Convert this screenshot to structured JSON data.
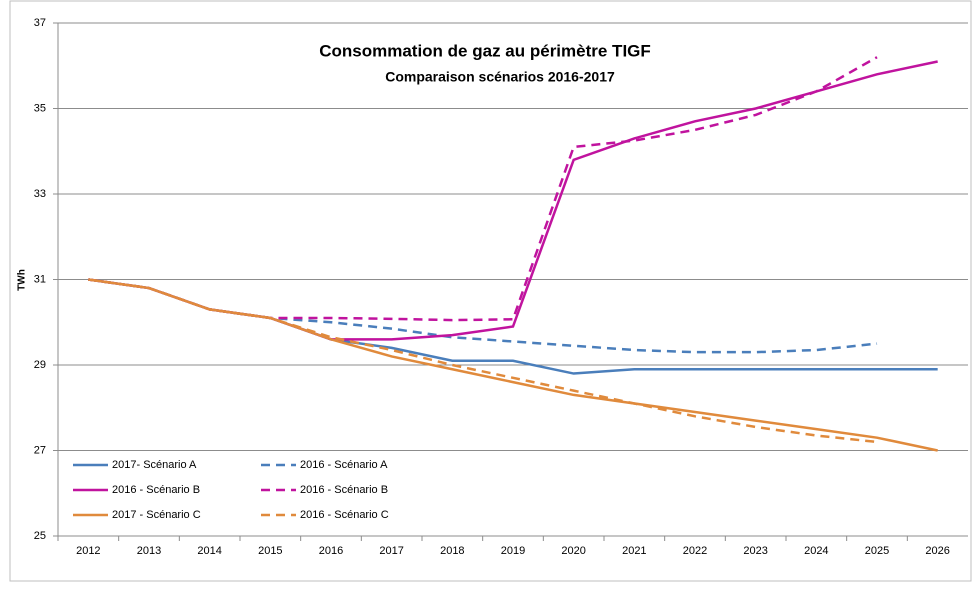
{
  "chart_data": {
    "type": "line",
    "title": "Consommation de gaz au périmètre TIGF",
    "subtitle": "Comparaison  scénarios  2016-2017",
    "y_label": "TWh",
    "categories": [
      "2012",
      "2013",
      "2014",
      "2015",
      "2016",
      "2017",
      "2018",
      "2019",
      "2020",
      "2021",
      "2022",
      "2023",
      "2024",
      "2025",
      "2026"
    ],
    "ylim": [
      25,
      37
    ],
    "yticks": [
      25,
      27,
      29,
      31,
      33,
      35,
      37
    ],
    "grid": true,
    "legend": "lower left",
    "series": [
      {
        "name": "2017- Scénario A",
        "color": "#4a7ebb",
        "dash": false,
        "values": [
          31.0,
          30.8,
          30.3,
          30.1,
          29.6,
          29.4,
          29.1,
          29.1,
          28.8,
          28.9,
          28.9,
          28.9,
          28.9,
          28.9,
          28.9
        ]
      },
      {
        "name": "2016 - Scénario A",
        "color": "#4a7ebb",
        "dash": true,
        "values": [
          31.0,
          30.8,
          30.3,
          30.1,
          30.0,
          29.85,
          29.65,
          29.55,
          29.45,
          29.35,
          29.3,
          29.3,
          29.35,
          29.5,
          null
        ]
      },
      {
        "name": "2016 - Scénario B",
        "color": "#c0139e",
        "dash": false,
        "values": [
          31.0,
          30.8,
          30.3,
          30.1,
          29.6,
          29.6,
          29.7,
          29.9,
          33.8,
          34.3,
          34.7,
          35.0,
          35.4,
          35.8,
          36.1
        ]
      },
      {
        "name": "2016 - Scénario B",
        "color": "#c0139e",
        "dash": true,
        "values": [
          31.0,
          30.8,
          30.3,
          30.1,
          30.1,
          30.08,
          30.05,
          30.07,
          34.1,
          34.25,
          34.5,
          34.85,
          35.4,
          36.2,
          null
        ]
      },
      {
        "name": "2017 - Scénario C",
        "color": "#e08a3c",
        "dash": false,
        "values": [
          31.0,
          30.8,
          30.3,
          30.1,
          29.6,
          29.2,
          28.9,
          28.6,
          28.3,
          28.1,
          27.9,
          27.7,
          27.5,
          27.3,
          27.0
        ]
      },
      {
        "name": "2016 - Scénario C",
        "color": "#e08a3c",
        "dash": true,
        "values": [
          31.0,
          30.8,
          30.3,
          30.1,
          29.65,
          29.35,
          29.0,
          28.7,
          28.4,
          28.1,
          27.8,
          27.55,
          27.35,
          27.2,
          null
        ]
      }
    ]
  }
}
